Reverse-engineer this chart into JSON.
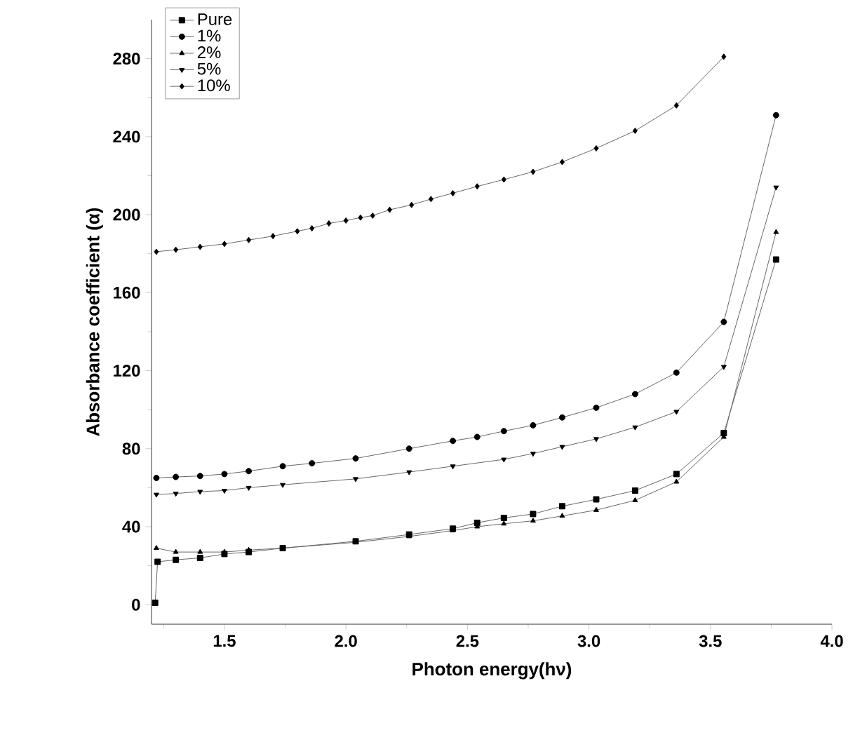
{
  "chart_data": {
    "type": "line",
    "xlabel": "Photon energy(hν)",
    "ylabel": "Absorbance coefficient (α)",
    "xlim": [
      1.2,
      4.0
    ],
    "ylim": [
      -10,
      300
    ],
    "xticks": [
      {
        "value": 1.25,
        "label": null
      },
      1.5,
      {
        "value": 1.75,
        "label": null
      },
      {
        "value": 2.0,
        "label": "2.0"
      },
      {
        "value": 2.25,
        "label": null
      },
      2.5,
      {
        "value": 2.75,
        "label": null
      },
      {
        "value": 3.0,
        "label": "3.0"
      },
      {
        "value": 3.25,
        "label": null
      },
      3.5,
      {
        "value": 3.75,
        "label": null
      },
      {
        "value": 4.0,
        "label": "4.0"
      }
    ],
    "yticks": [
      0,
      {
        "value": 20,
        "label": null
      },
      40,
      {
        "value": 60,
        "label": null
      },
      80,
      {
        "value": 100,
        "label": null
      },
      120,
      {
        "value": 140,
        "label": null
      },
      160,
      {
        "value": 180,
        "label": null
      },
      200,
      {
        "value": 220,
        "label": null
      },
      240,
      {
        "value": 260,
        "label": null
      },
      280
    ],
    "legend": "top left",
    "grid": false,
    "line_style": "solid",
    "series": [
      {
        "name": "Pure",
        "color": "#000000",
        "marker": "square",
        "x": [
          1.215,
          1.225,
          1.3,
          1.4,
          1.5,
          1.6,
          1.74,
          2.04,
          2.26,
          2.44,
          2.54,
          2.65,
          2.77,
          2.89,
          3.03,
          3.19,
          3.36,
          3.555,
          3.77
        ],
        "values": [
          1,
          22,
          23,
          24,
          26,
          27,
          29,
          32.5,
          36,
          39,
          42,
          44.5,
          46.5,
          50.5,
          54,
          58.5,
          67,
          88,
          177
        ]
      },
      {
        "name": "1%",
        "color": "#000000",
        "marker": "circle",
        "x": [
          1.22,
          1.3,
          1.4,
          1.5,
          1.6,
          1.74,
          1.86,
          2.04,
          2.26,
          2.44,
          2.54,
          2.65,
          2.77,
          2.89,
          3.03,
          3.19,
          3.36,
          3.555,
          3.77
        ],
        "values": [
          65,
          65.5,
          66,
          67,
          68.5,
          71,
          72.5,
          75,
          80,
          84,
          86,
          89,
          92,
          96,
          101,
          108,
          119,
          145,
          251
        ]
      },
      {
        "name": "2%",
        "color": "#000000",
        "marker": "triangle",
        "x": [
          1.22,
          1.3,
          1.4,
          1.5,
          1.6,
          1.74,
          2.04,
          2.26,
          2.44,
          2.54,
          2.65,
          2.77,
          2.89,
          3.03,
          3.19,
          3.36,
          3.555,
          3.77
        ],
        "values": [
          29,
          27,
          27,
          27,
          28,
          29,
          32,
          35,
          38,
          40,
          41.5,
          43,
          45.5,
          48.5,
          53.5,
          63,
          86,
          191
        ]
      },
      {
        "name": "5%",
        "color": "#000000",
        "marker": "triangle-down",
        "x": [
          1.22,
          1.3,
          1.4,
          1.5,
          1.6,
          1.74,
          2.04,
          2.26,
          2.44,
          2.65,
          2.77,
          2.89,
          3.03,
          3.19,
          3.36,
          3.555,
          3.77
        ],
        "values": [
          56.5,
          57,
          58,
          58.5,
          60,
          61.5,
          64.5,
          68,
          71,
          74.5,
          77.5,
          81,
          85,
          91,
          99,
          122,
          214
        ]
      },
      {
        "name": "10%",
        "color": "#000000",
        "marker": "diamond",
        "x": [
          1.22,
          1.3,
          1.4,
          1.5,
          1.6,
          1.7,
          1.8,
          1.86,
          1.93,
          2.0,
          2.06,
          2.11,
          2.18,
          2.27,
          2.35,
          2.44,
          2.54,
          2.65,
          2.77,
          2.89,
          3.03,
          3.19,
          3.36,
          3.555
        ],
        "values": [
          181,
          182,
          183.5,
          185,
          187,
          189,
          191.5,
          193,
          195.5,
          197,
          198.5,
          199.5,
          202.5,
          205,
          208,
          211,
          214.5,
          218,
          222,
          227,
          234,
          243,
          256,
          281
        ]
      }
    ]
  }
}
